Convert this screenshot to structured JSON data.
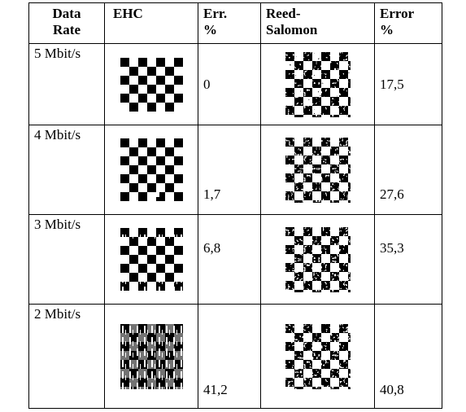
{
  "table": {
    "header": [
      "Data Rate",
      "EHC",
      "Err. %",
      "Reed-Salomon",
      "Error %"
    ],
    "rows": [
      {
        "rate": "5 Mbit/s",
        "ehc_error": "0",
        "rs_error": "17,5"
      },
      {
        "rate": "4 Mbit/s",
        "ehc_error": "1,7",
        "rs_error": "27,6"
      },
      {
        "rate": "3 Mbit/s",
        "ehc_error": "6,8",
        "rs_error": "35,3"
      },
      {
        "rate": "2 Mbit/s",
        "ehc_error": "41,2",
        "rs_error": "40,8"
      }
    ]
  }
}
